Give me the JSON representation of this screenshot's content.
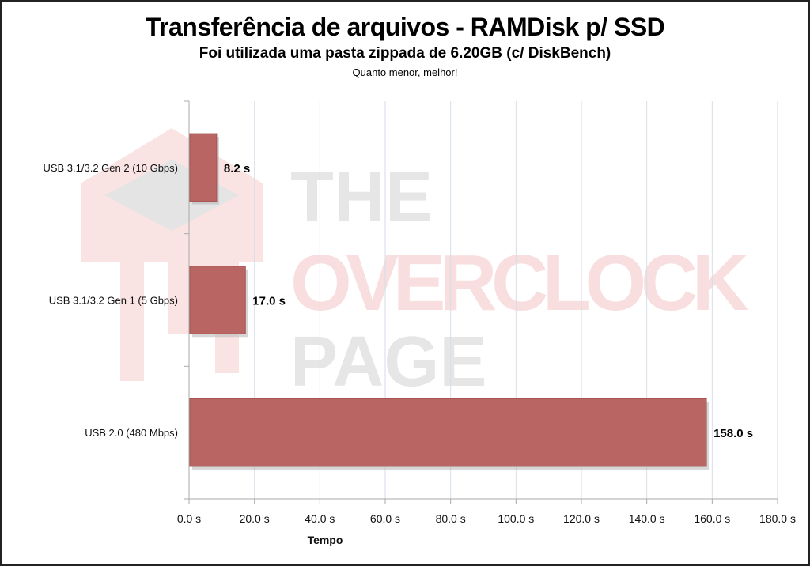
{
  "chart_data": {
    "type": "bar",
    "orientation": "horizontal",
    "title": "Transferência de arquivos - RAMDisk p/ SSD",
    "subtitle": "Foi utilizada uma pasta zippada de 6.20GB (c/ DiskBench)",
    "note": "Quanto menor, melhor!",
    "categories": [
      "USB 3.1/3.2 Gen 2 (10 Gbps)",
      "USB 3.1/3.2 Gen 1 (5 Gbps)",
      "USB 2.0 (480 Mbps)"
    ],
    "values": [
      8.2,
      17.0,
      158.0
    ],
    "data_labels": [
      "8.2 s",
      "17.0 s",
      "158.0 s"
    ],
    "xlabel": "Tempo",
    "ylabel": "",
    "xlim": [
      0,
      180
    ],
    "xticks": [
      0,
      20,
      40,
      60,
      80,
      100,
      120,
      140,
      160,
      180
    ],
    "xtick_labels": [
      "0.0 s",
      "20.0 s",
      "40.0 s",
      "60.0 s",
      "80.0 s",
      "100.0 s",
      "120.0 s",
      "140.0 s",
      "160.0 s",
      "180.0 s"
    ],
    "grid": "vertical",
    "legend": "none",
    "bar_color": "#b96563",
    "watermark": [
      "THE",
      "OVERCLOCK",
      "PAGE"
    ]
  }
}
